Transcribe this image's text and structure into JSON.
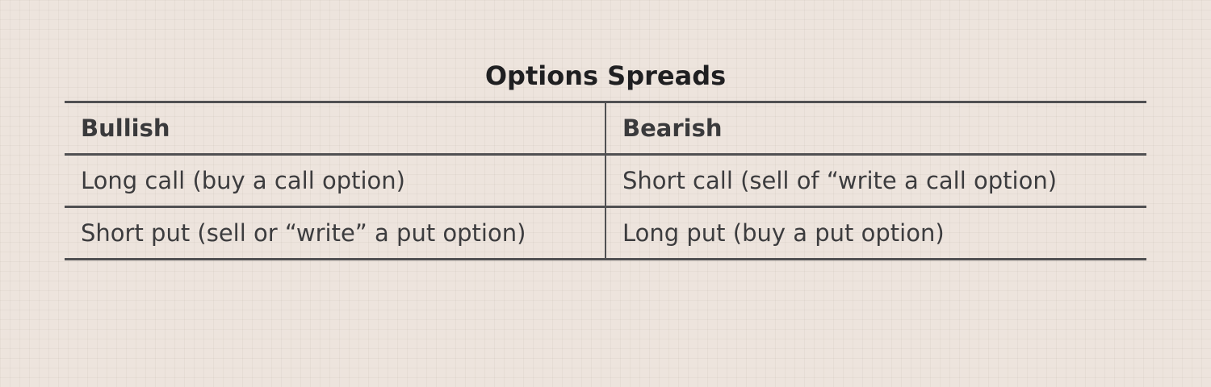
{
  "title": "Options Spreads",
  "table": {
    "headers": [
      "Bullish",
      "Bearish"
    ],
    "rows": [
      [
        "Long call (buy a call option)",
        "Short call (sell of “write a call option)"
      ],
      [
        "Short put (sell or “write” a put option)",
        "Long put (buy a put option)"
      ]
    ]
  }
}
